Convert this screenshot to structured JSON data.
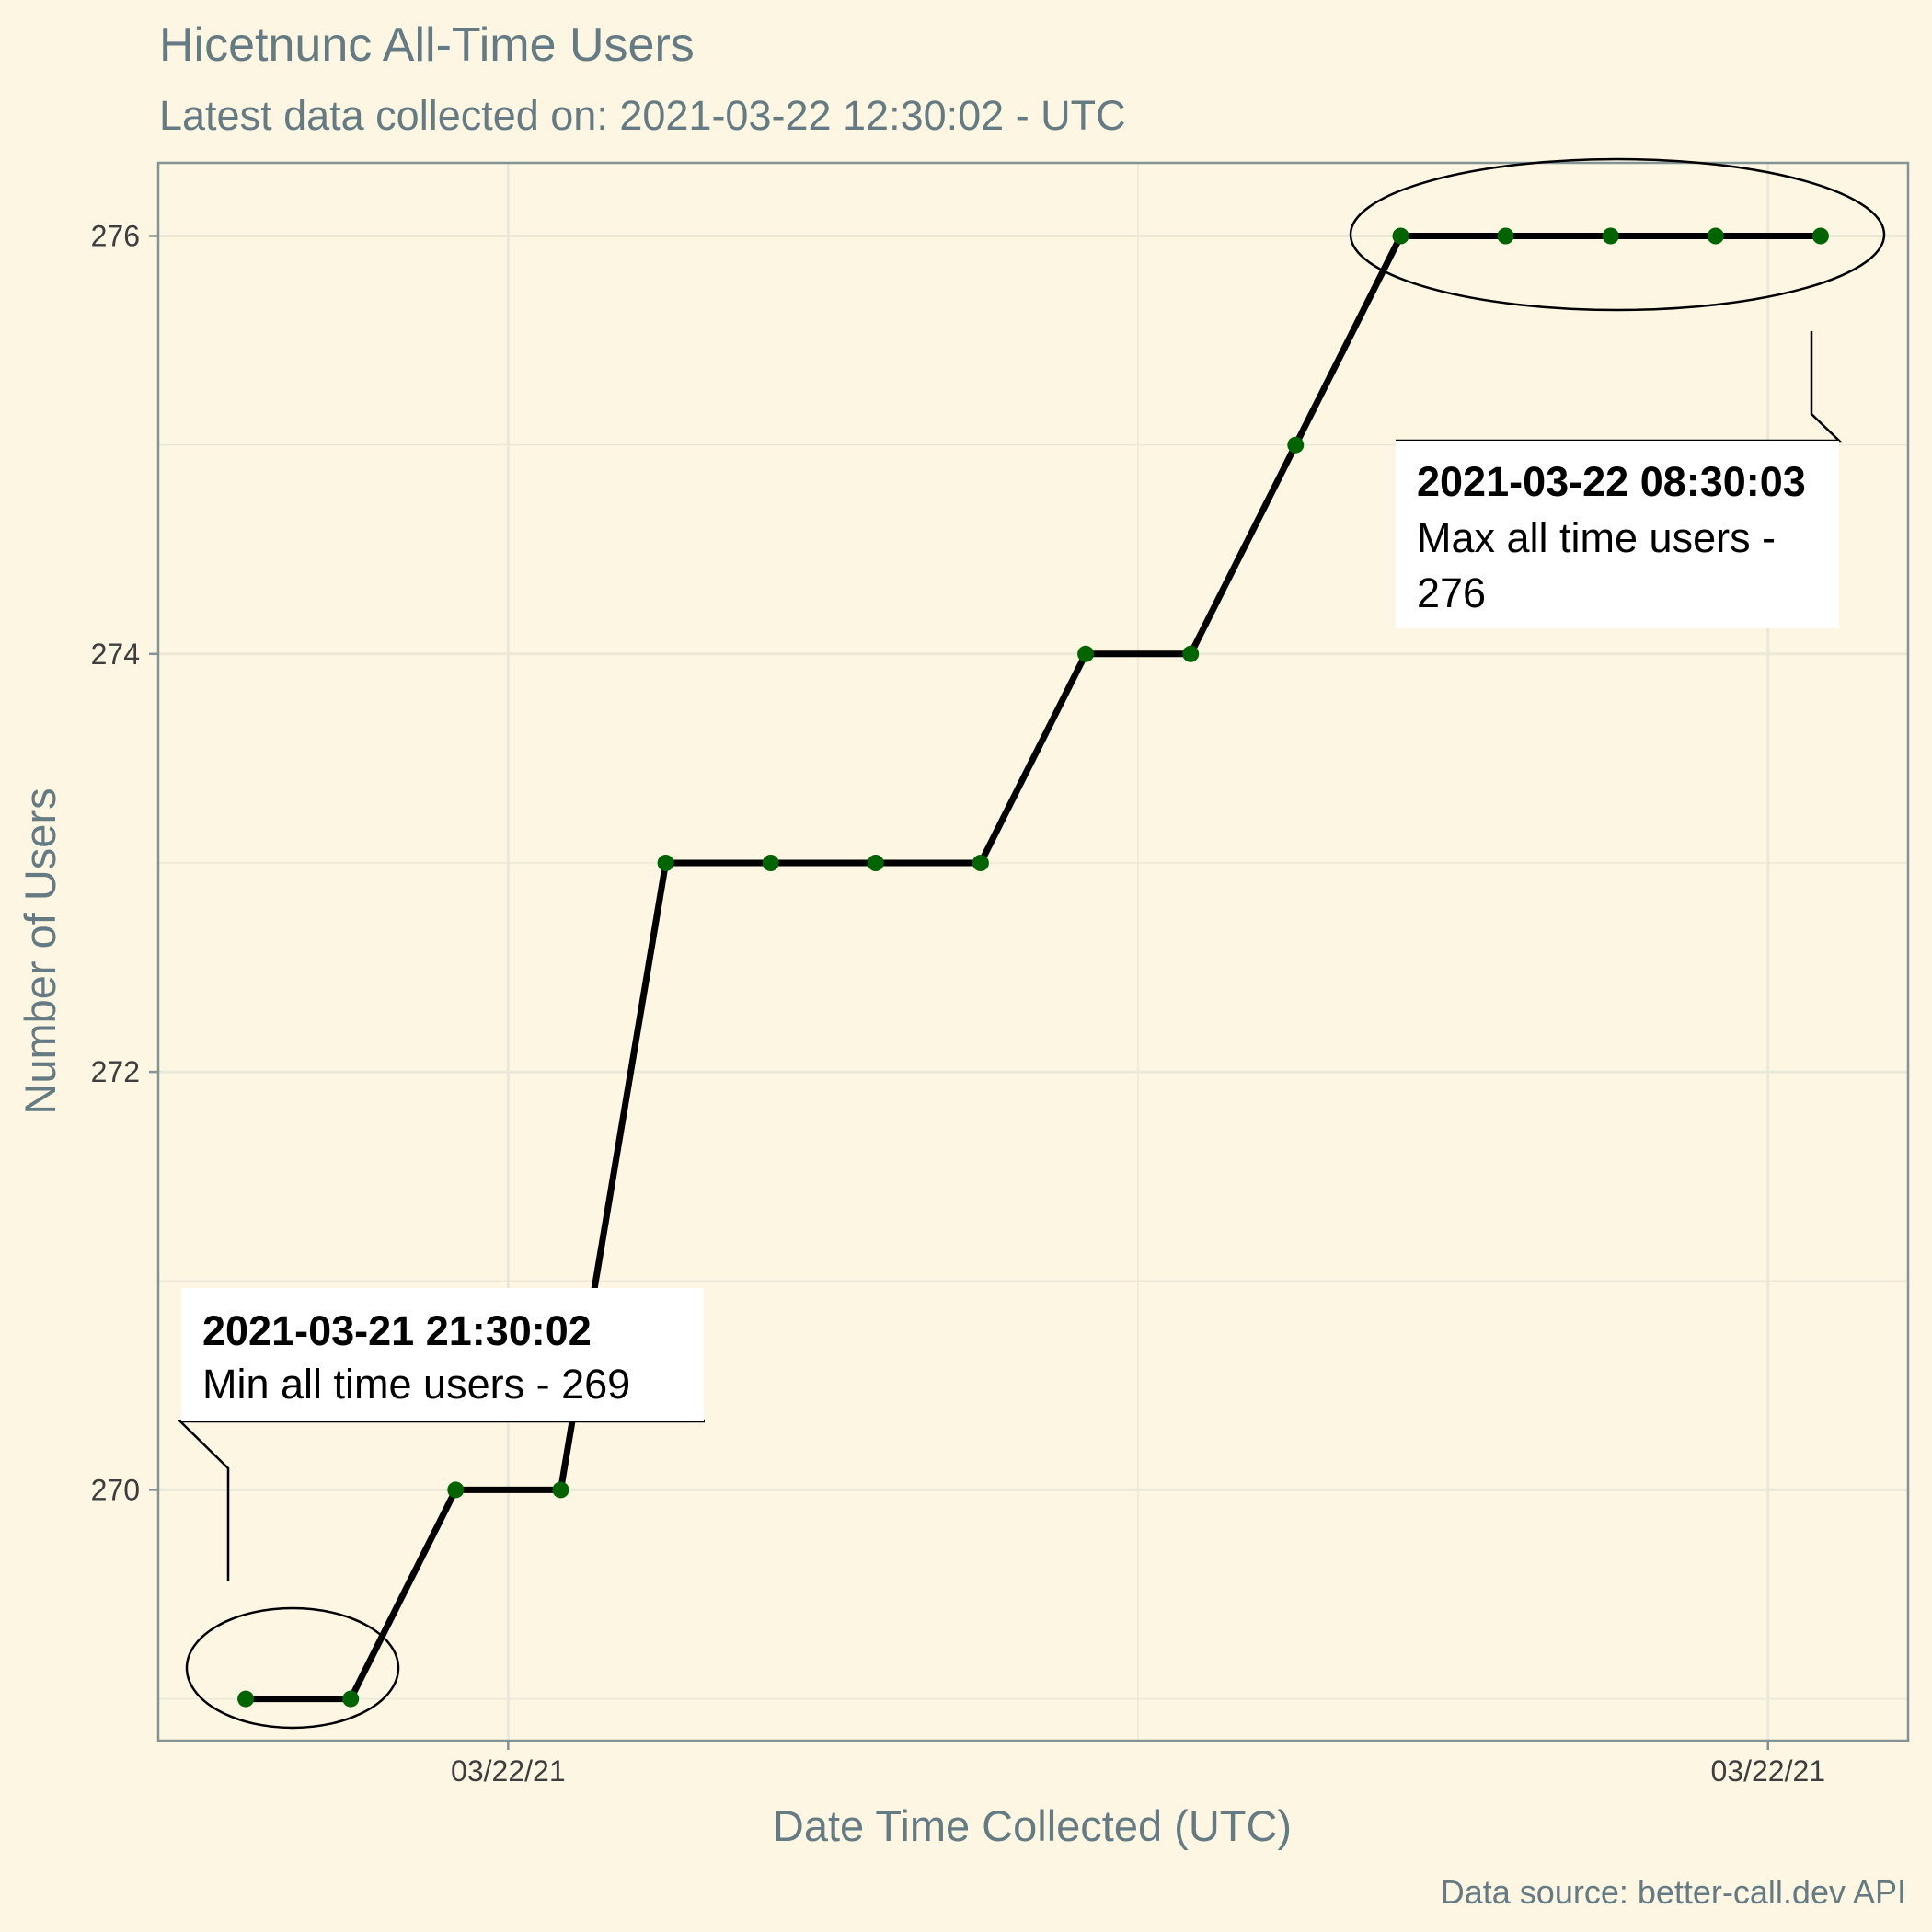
{
  "chart_data": {
    "type": "line",
    "title": "Hicetnunc All-Time Users",
    "subtitle": "Latest data collected on: 2021-03-22 12:30:02  - UTC",
    "xlabel": "Date Time Collected (UTC)",
    "ylabel": "Number of Users",
    "caption": "Data source: better-call.dev API",
    "x": [
      "2021-03-21 21:30:02",
      "2021-03-21 22:30:02",
      "2021-03-21 23:30:02",
      "2021-03-22 00:30:02",
      "2021-03-22 01:30:02",
      "2021-03-22 02:30:02",
      "2021-03-22 03:30:02",
      "2021-03-22 04:30:02",
      "2021-03-22 05:30:02",
      "2021-03-22 06:30:02",
      "2021-03-22 07:30:02",
      "2021-03-22 08:30:03",
      "2021-03-22 09:30:02",
      "2021-03-22 10:30:02",
      "2021-03-22 11:30:02",
      "2021-03-22 12:30:02"
    ],
    "series": [
      {
        "values": [
          269,
          269,
          270,
          270,
          273,
          273,
          273,
          273,
          274,
          274,
          275,
          276,
          276,
          276,
          276,
          276
        ]
      }
    ],
    "x_tick_labels": [
      "03/22/21",
      "03/22/21",
      "03/22/21"
    ],
    "y_ticks": [
      270,
      272,
      274,
      276
    ],
    "ylim": [
      268.8,
      276.35
    ],
    "grid": true,
    "line_color": "#000000",
    "point_color": "#006400",
    "annotations": [
      {
        "title": "2021-03-21 21:30:02",
        "lines": [
          "Min all time users - 269"
        ]
      },
      {
        "title": "2021-03-22 08:30:03",
        "lines": [
          "Max all time users -",
          "276"
        ]
      }
    ]
  }
}
